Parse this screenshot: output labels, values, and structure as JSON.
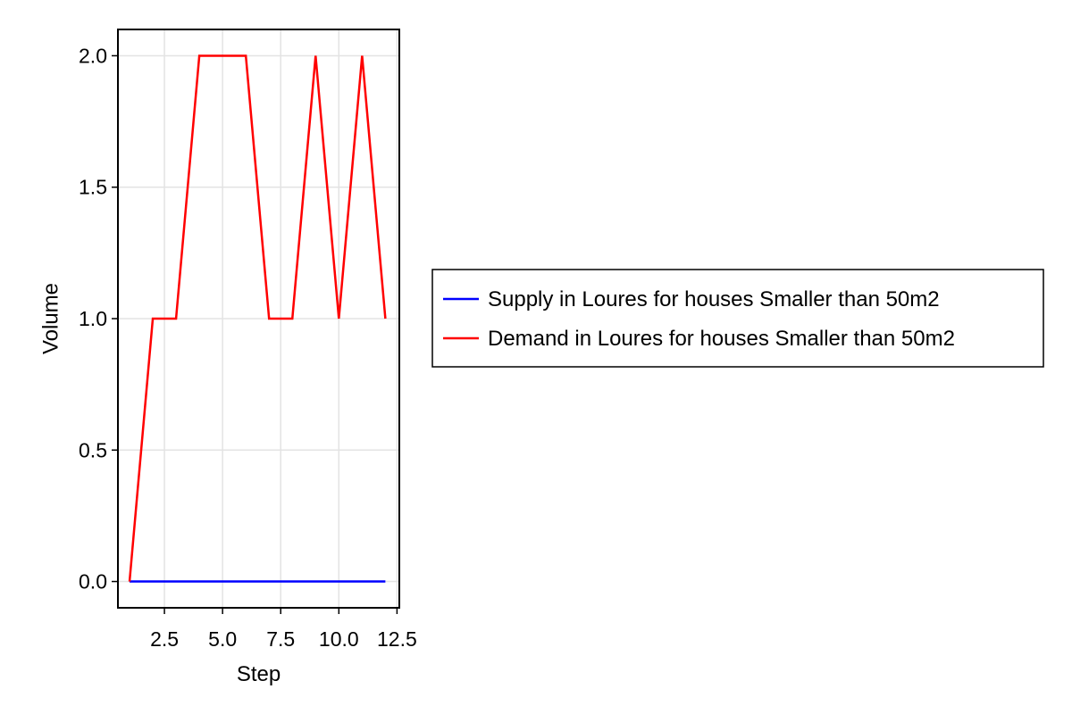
{
  "chart_data": {
    "type": "line",
    "title": "",
    "xlabel": "Step",
    "ylabel": "Volume",
    "xlim": [
      0.5,
      12.6
    ],
    "ylim": [
      -0.1,
      2.1
    ],
    "x_ticks": [
      2.5,
      5.0,
      7.5,
      10.0,
      12.5
    ],
    "x_tick_labels": [
      "2.5",
      "5.0",
      "7.5",
      "10.0",
      "12.5"
    ],
    "y_ticks": [
      0.0,
      0.5,
      1.0,
      1.5,
      2.0
    ],
    "y_tick_labels": [
      "0.0",
      "0.5",
      "1.0",
      "1.5",
      "2.0"
    ],
    "grid": true,
    "legend_position": "right",
    "x": [
      1,
      2,
      3,
      4,
      5,
      6,
      7,
      8,
      9,
      10,
      11,
      12
    ],
    "series": [
      {
        "name": "Supply in Loures for houses Smaller than 50m2",
        "color": "#0000ff",
        "values": [
          0,
          0,
          0,
          0,
          0,
          0,
          0,
          0,
          0,
          0,
          0,
          0
        ]
      },
      {
        "name": "Demand in Loures for houses Smaller than 50m2",
        "color": "#ff0000",
        "values": [
          0,
          1,
          1,
          2,
          2,
          2,
          1,
          1,
          2,
          1,
          2,
          1
        ]
      }
    ]
  }
}
